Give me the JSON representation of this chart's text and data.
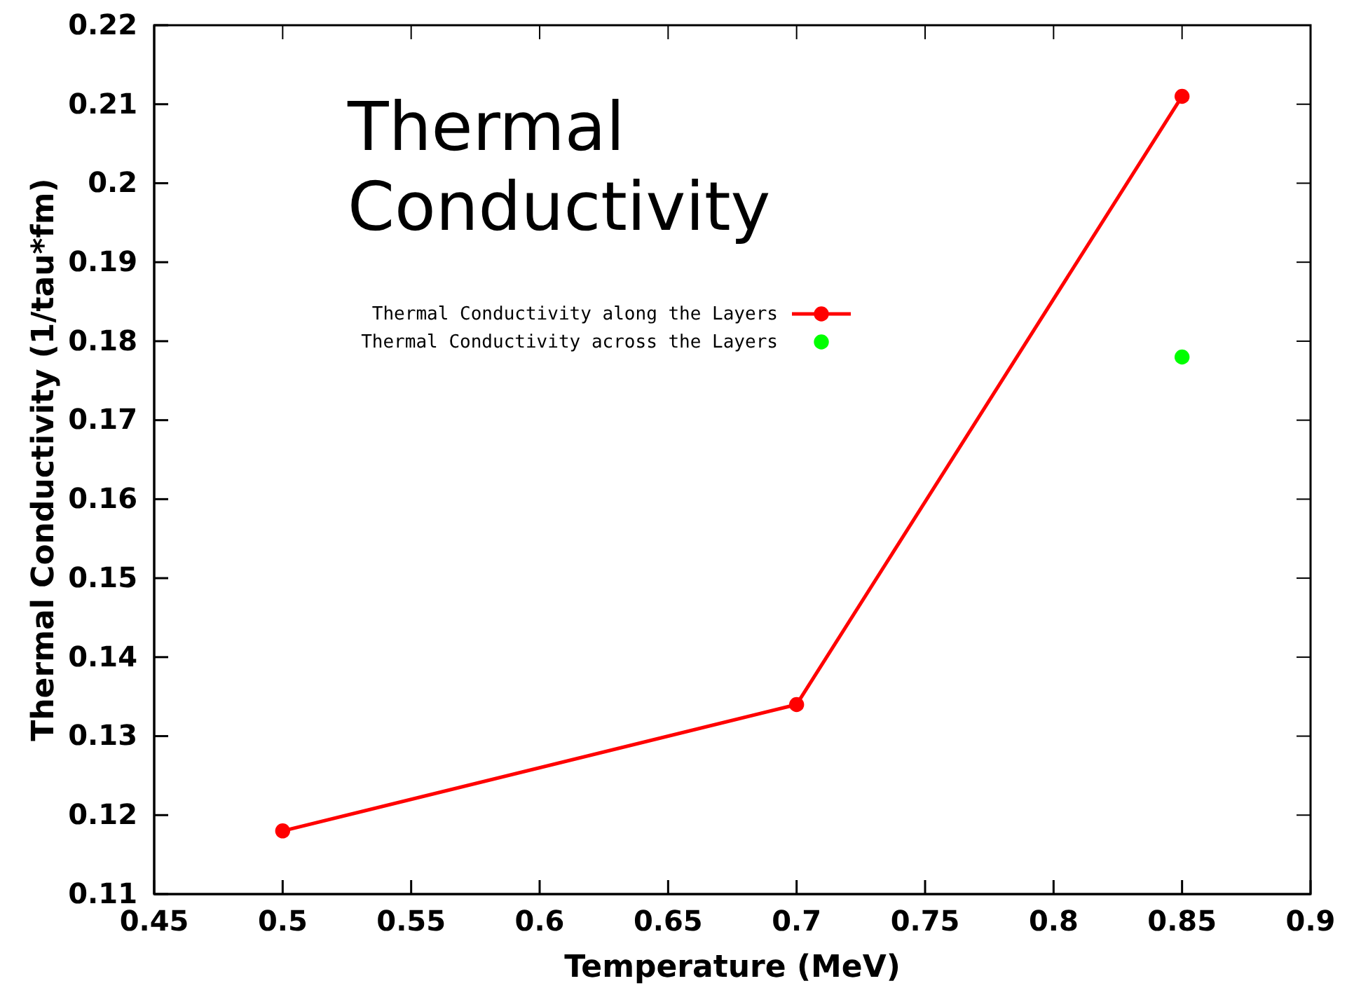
{
  "chart_data": {
    "type": "line",
    "title": "Thermal Conductivity",
    "xlabel": "Temperature (MeV)",
    "ylabel": "Thermal Conductivity (1/tau*fm)",
    "xlim": [
      0.45,
      0.9
    ],
    "xticks": [
      0.45,
      0.5,
      0.55,
      0.6,
      0.65,
      0.7,
      0.75,
      0.8,
      0.85,
      0.9
    ],
    "ylim": [
      0.11,
      0.22
    ],
    "yticks": [
      0.11,
      0.12,
      0.13,
      0.14,
      0.15,
      0.16,
      0.17,
      0.18,
      0.19,
      0.2,
      0.21,
      0.22
    ],
    "legend": "top left",
    "marker": "circle",
    "line_style": "solid",
    "series": [
      {
        "name": "Thermal Conductivity along the Layers",
        "color": "#ff0000",
        "x": [
          0.5,
          0.7,
          0.85
        ],
        "values": [
          0.118,
          0.134,
          0.211
        ]
      },
      {
        "name": "Thermal Conductivity across the Layers",
        "color": "#00ff00",
        "type": "scatter",
        "x": [
          0.85
        ],
        "values": [
          0.178
        ]
      }
    ]
  }
}
